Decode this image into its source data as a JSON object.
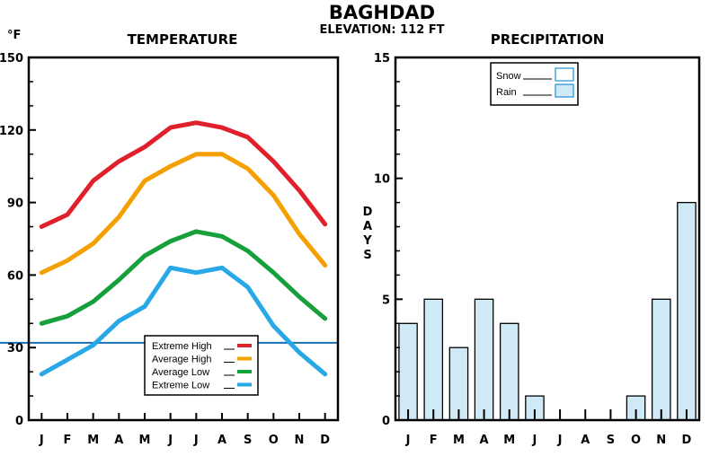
{
  "header": {
    "title": "BAGHDAD",
    "subtitle": "ELEVATION: 112 FT"
  },
  "chart_data": [
    {
      "type": "line",
      "title": "TEMPERATURE",
      "ylabel": "°F",
      "categories": [
        "J",
        "F",
        "M",
        "A",
        "M",
        "J",
        "J",
        "A",
        "S",
        "O",
        "N",
        "D"
      ],
      "ylim": [
        0,
        150
      ],
      "yticks": [
        0,
        30,
        60,
        90,
        120,
        150
      ],
      "freezing_line": 32,
      "freezing_color": "#1a6fb0",
      "legend_position": "bottom-center",
      "series": [
        {
          "name": "Extreme High",
          "color": "#e0202a",
          "values": [
            80,
            85,
            99,
            107,
            113,
            121,
            123,
            121,
            117,
            107,
            95,
            81
          ]
        },
        {
          "name": "Average High",
          "color": "#f5a000",
          "values": [
            61,
            66,
            73,
            84,
            99,
            105,
            110,
            110,
            104,
            93,
            77,
            64
          ]
        },
        {
          "name": "Average Low",
          "color": "#16a03c",
          "values": [
            40,
            43,
            49,
            58,
            68,
            74,
            78,
            76,
            70,
            61,
            51,
            42
          ]
        },
        {
          "name": "Extreme Low",
          "color": "#28a8e6",
          "values": [
            19,
            25,
            31,
            41,
            47,
            63,
            61,
            63,
            55,
            39,
            28,
            19
          ]
        }
      ]
    },
    {
      "type": "bar",
      "title": "PRECIPITATION",
      "ylabel": "DAYS",
      "categories": [
        "J",
        "F",
        "M",
        "A",
        "M",
        "J",
        "J",
        "A",
        "S",
        "O",
        "N",
        "D"
      ],
      "ylim": [
        0,
        15
      ],
      "yticks": [
        0,
        5,
        10,
        15
      ],
      "legend_position": "top-left",
      "series": [
        {
          "name": "Snow",
          "color": "#ffffff",
          "values": [
            0,
            0,
            0,
            0,
            0,
            0,
            0,
            0,
            0,
            0,
            0,
            0
          ]
        },
        {
          "name": "Rain",
          "color": "#cfe9f7",
          "values": [
            4,
            5,
            3,
            5,
            4,
            1,
            0,
            0,
            0,
            1,
            5,
            9
          ]
        }
      ]
    }
  ]
}
